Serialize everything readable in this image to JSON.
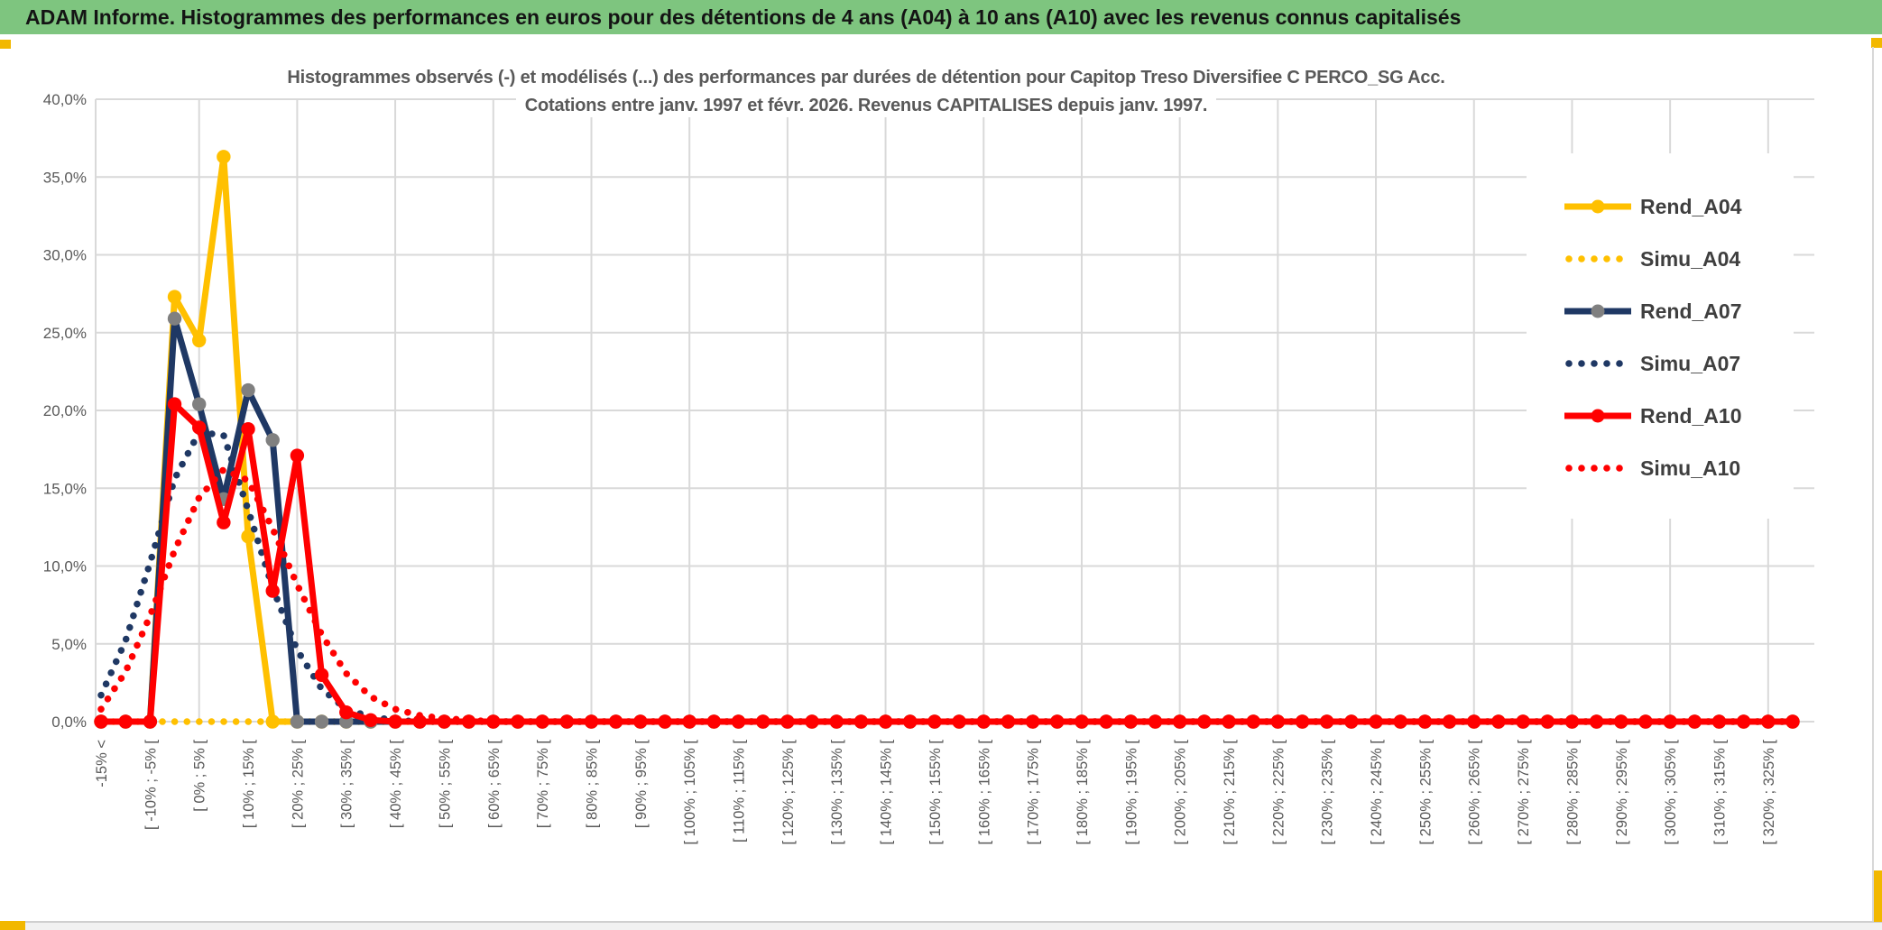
{
  "header": {
    "title": "ADAM Informe. Histogrammes des performances en euros pour des détentions de 4 ans (A04) à 10 ans (A10) avec les revenus connus capitalisés"
  },
  "colors": {
    "header_green": "#7EC57F",
    "accent_gold": "#F2B800",
    "gridline": "#D9D9D9",
    "axis_text": "#595959",
    "title_text": "#595959",
    "legend_text": "#3F3F3F",
    "series_gold": "#FFC000",
    "series_navy": "#1F3864",
    "series_red": "#FF0000",
    "marker_grey": "#808080"
  },
  "chart_data": {
    "type": "line",
    "title_line1": "Histogrammes observés (-) et modélisés (...) des performances par durées de détention pour Capitop Treso Diversifiee C PERCO_SG Acc.",
    "title_line2": "Cotations entre janv. 1997 et févr. 2026. Revenus CAPITALISES depuis janv. 1997.",
    "ylabel": "",
    "xlabel": "",
    "ylim": [
      0,
      40
    ],
    "y_step": 5,
    "grid": true,
    "legend_position": "top-right",
    "y_tick_labels": [
      "0,0%",
      "5,0%",
      "10,0%",
      "15,0%",
      "20,0%",
      "25,0%",
      "30,0%",
      "35,0%",
      "40,0%"
    ],
    "n_categories": 70,
    "label_every": 2,
    "x_tick_labels": [
      "-15% <",
      "[ -10% ; -5% [",
      "[ 0% ; 5% [",
      "[ 10% ; 15% [",
      "[ 20% ; 25% [",
      "[ 30% ; 35% [",
      "[ 40% ; 45% [",
      "[ 50% ; 55% [",
      "[ 60% ; 65% [",
      "[ 70% ; 75% [",
      "[ 80% ; 85% [",
      "[ 90% ; 95% [",
      "[ 100% ; 105% [",
      "[ 110% ; 115% [",
      "[ 120% ; 125% [",
      "[ 130% ; 135% [",
      "[ 140% ; 145% [",
      "[ 150% ; 155% [",
      "[ 160% ; 165% [",
      "[ 170% ; 175% [",
      "[ 180% ; 185% [",
      "[ 190% ; 195% [",
      "[ 200% ; 205% [",
      "[ 210% ; 215% [",
      "[ 220% ; 225% [",
      "[ 230% ; 235% [",
      "[ 240% ; 245% [",
      "[ 250% ; 255% [",
      "[ 260% ; 265% [",
      "[ 270% ; 275% [",
      "[ 280% ; 285% [",
      "[ 290% ; 295% [",
      "[ 300% ; 305% [",
      "[ 310% ; 315% [",
      "[ 320% ; 325% ["
    ],
    "series": [
      {
        "name": "Rend_A04",
        "style": "solid",
        "color": "#FFC000",
        "marker": "#FFC000",
        "values": [
          0,
          0,
          0,
          27.3,
          24.5,
          36.3,
          11.9,
          0,
          0,
          0,
          0,
          0,
          0,
          0,
          0,
          0
        ]
      },
      {
        "name": "Simu_A04",
        "style": "dotted",
        "color": "#FFC000",
        "values": [
          0,
          0,
          0,
          0,
          0,
          0,
          0,
          0,
          0,
          0,
          0,
          0,
          0,
          0,
          0,
          0
        ]
      },
      {
        "name": "Rend_A07",
        "style": "solid",
        "color": "#1F3864",
        "marker": "#808080",
        "values": [
          0,
          0,
          0,
          25.9,
          20.4,
          14.3,
          21.3,
          18.1,
          0,
          0,
          0,
          0,
          0,
          0,
          0,
          0
        ]
      },
      {
        "name": "Simu_A07",
        "style": "dotted",
        "color": "#1F3864",
        "values": [
          1.7,
          5.2,
          10.2,
          15.6,
          18.6,
          18.4,
          13.6,
          8.6,
          4.6,
          2.1,
          0.8,
          0.3,
          0.1,
          0,
          0,
          0
        ]
      },
      {
        "name": "Rend_A10",
        "style": "solid",
        "color": "#FF0000",
        "marker": "#FF0000",
        "values": [
          0,
          0,
          0,
          20.4,
          18.9,
          12.8,
          18.8,
          8.4,
          17.1,
          3.0,
          0.6,
          0.1,
          0,
          0,
          0,
          0
        ]
      },
      {
        "name": "Simu_A10",
        "style": "dotted",
        "color": "#FF0000",
        "values": [
          0.8,
          3.2,
          6.8,
          11.0,
          14.4,
          16.2,
          15.5,
          12.4,
          8.8,
          5.6,
          3.1,
          1.6,
          0.8,
          0.4,
          0.2,
          0.1
        ]
      }
    ]
  }
}
